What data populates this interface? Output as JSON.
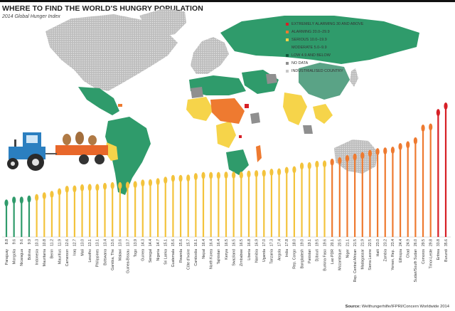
{
  "header": {
    "title": "WHERE TO FIND THE WORLD'S HUNGRY POPULATION",
    "subtitle": "2014 Global Hunger Index"
  },
  "legend": {
    "items": [
      {
        "label": "EXTREMELY ALARMING 30 AND ABOVE",
        "color": "#d71f26"
      },
      {
        "label": "ALARMING 20.0–29.9",
        "color": "#ee7a30"
      },
      {
        "label": "SERIOUS 10.0–19.9",
        "color": "#f6d44a"
      },
      {
        "label": "MODERATE 5.0–9.9",
        "color": "#2f9b6b"
      },
      {
        "label": "LOW 4.9 AND BELOW",
        "color": "#0f5b3c"
      },
      {
        "label": "NO DATA",
        "color": "#8f8f8f"
      },
      {
        "label": "INDUSTRIALISED COUNTRY",
        "color": "#c8c8c8"
      }
    ]
  },
  "colors": {
    "extremely_alarming": "#d71f26",
    "alarming": "#ee7a30",
    "serious": "#f3c33c",
    "moderate": "#2f9b6b",
    "no_data": "#8f8f8f",
    "industrialised": "#c8c8c8",
    "tractor_body": "#2b7fc0",
    "trailer": "#e8672a"
  },
  "source": {
    "prefix": "Source:",
    "text": "Welthungerhilfe/IFPRI/Concern Worldwide 2014"
  },
  "chart_data": {
    "type": "bar",
    "categories": [
      "Paraguay",
      "Mongolia",
      "Nicaragua",
      "Bolivia",
      "Indonesia",
      "Mauritania",
      "Benin",
      "Mauritius",
      "Cameroon",
      "Iraq",
      "Mali",
      "Lesotho",
      "Philippines",
      "Botswana",
      "Gambia, The",
      "Malawi",
      "Guinea-Bissau",
      "Togo",
      "Guinea",
      "Senegal",
      "Nigeria",
      "Sri Lanka",
      "Guatemala",
      "Rwanda",
      "Côte d'Ivoire",
      "Cambodia",
      "Nepal",
      "North Korea",
      "Tajikistan",
      "Kenya",
      "Swaziland",
      "Zimbabwe",
      "Liberia",
      "Namibia",
      "Uganda",
      "Tanzania",
      "Angola",
      "India",
      "Rep. Congo",
      "Bangladesh",
      "Pakistan",
      "Djibouti",
      "Burkina Faso",
      "Lao PDR",
      "Mozambique",
      "Niger",
      "Rep. Central African",
      "Madagascar",
      "Sierra Leone",
      "Haiti",
      "Zambia",
      "Yemen, Rep.",
      "Ethiopia",
      "Chad",
      "Sudan/South Sudan",
      "Comoros",
      "Timor-Leste",
      "Eritrea",
      "Burundi"
    ],
    "values": [
      8.8,
      9.6,
      9.6,
      9.9,
      10.3,
      10.8,
      11.2,
      11.9,
      12.6,
      12.7,
      13.0,
      13.1,
      13.1,
      13.4,
      13.6,
      13.6,
      13.7,
      13.9,
      14.3,
      14.4,
      14.7,
      15.1,
      15.6,
      15.6,
      15.7,
      16.1,
      16.4,
      16.4,
      16.4,
      16.5,
      16.5,
      16.5,
      16.8,
      16.9,
      17.0,
      17.3,
      17.4,
      17.8,
      18.0,
      19.0,
      19.1,
      19.5,
      19.6,
      20.1,
      20.5,
      21.1,
      21.5,
      21.9,
      22.5,
      23.0,
      23.2,
      23.4,
      24.4,
      24.9,
      26.0,
      29.5,
      29.8,
      33.8,
      35.6
    ],
    "title": "",
    "xlabel": "",
    "ylabel": "",
    "ylim": [
      0,
      36
    ]
  }
}
